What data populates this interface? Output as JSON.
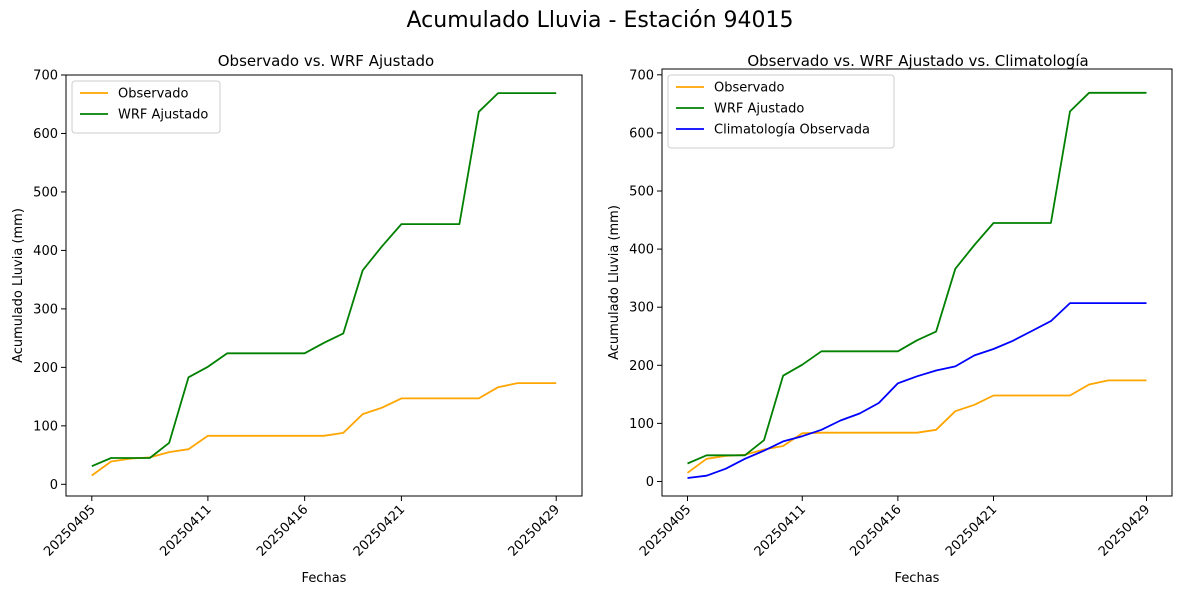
{
  "figure": {
    "suptitle": "Acumulado Lluvia - Estación 94015"
  },
  "colors": {
    "observado": "#ffa500",
    "wrf": "#008000",
    "clim": "#0000ff"
  },
  "chart_data": [
    {
      "type": "line",
      "title": "Observado vs. WRF Ajustado",
      "xlabel": "Fechas",
      "ylabel": "Acumulado Lluvia (mm)",
      "x": [
        "20250405",
        "20250406",
        "20250407",
        "20250408",
        "20250409",
        "20250410",
        "20250411",
        "20250412",
        "20250413",
        "20250414",
        "20250415",
        "20250416",
        "20250417",
        "20250418",
        "20250419",
        "20250420",
        "20250421",
        "20250422",
        "20250423",
        "20250424",
        "20250425",
        "20250426",
        "20250427",
        "20250428",
        "20250429"
      ],
      "xticks": [
        "20250405",
        "20250411",
        "20250416",
        "20250421",
        "20250429"
      ],
      "yticks": [
        0,
        100,
        200,
        300,
        400,
        500,
        600,
        700
      ],
      "ylim": [
        -20,
        700
      ],
      "legend": "upper-left",
      "series": [
        {
          "name": "Observado",
          "color": "#ffa500",
          "values": [
            15,
            39,
            44,
            46,
            55,
            60,
            83,
            83,
            83,
            83,
            83,
            83,
            83,
            88,
            120,
            131,
            147,
            147,
            147,
            147,
            147,
            166,
            173,
            173,
            173
          ]
        },
        {
          "name": "WRF Ajustado",
          "color": "#008000",
          "values": [
            31,
            45,
            45,
            45,
            71,
            183,
            201,
            224,
            224,
            224,
            224,
            224,
            242,
            258,
            366,
            407,
            445,
            445,
            445,
            445,
            637,
            669,
            669,
            669,
            669
          ]
        }
      ]
    },
    {
      "type": "line",
      "title": "Observado vs. WRF Ajustado vs. Climatología",
      "xlabel": "Fechas",
      "ylabel": "Acumulado Lluvia (mm)",
      "x": [
        "20250405",
        "20250406",
        "20250407",
        "20250408",
        "20250409",
        "20250410",
        "20250411",
        "20250412",
        "20250413",
        "20250414",
        "20250415",
        "20250416",
        "20250417",
        "20250418",
        "20250419",
        "20250420",
        "20250421",
        "20250422",
        "20250423",
        "20250424",
        "20250425",
        "20250426",
        "20250427",
        "20250428",
        "20250429"
      ],
      "xticks": [
        "20250405",
        "20250411",
        "20250416",
        "20250421",
        "20250429"
      ],
      "yticks": [
        0,
        100,
        200,
        300,
        400,
        500,
        600,
        700
      ],
      "ylim": [
        -25,
        710
      ],
      "legend": "upper-left",
      "series": [
        {
          "name": "Observado",
          "color": "#ffa500",
          "values": [
            15,
            39,
            44,
            46,
            55,
            61,
            83,
            84,
            84,
            84,
            84,
            84,
            84,
            89,
            121,
            132,
            148,
            148,
            148,
            148,
            148,
            167,
            174,
            174,
            174
          ]
        },
        {
          "name": "WRF Ajustado",
          "color": "#008000",
          "values": [
            31,
            45,
            45,
            45,
            71,
            182,
            201,
            224,
            224,
            224,
            224,
            224,
            243,
            258,
            366,
            407,
            445,
            445,
            445,
            445,
            637,
            669,
            669,
            669,
            669
          ]
        },
        {
          "name": "Climatología Observada",
          "color": "#0000ff",
          "values": [
            6,
            10,
            22,
            39,
            53,
            69,
            78,
            89,
            105,
            117,
            135,
            169,
            181,
            191,
            198,
            217,
            228,
            242,
            259,
            276,
            307,
            307,
            307,
            307,
            307
          ]
        }
      ]
    }
  ]
}
